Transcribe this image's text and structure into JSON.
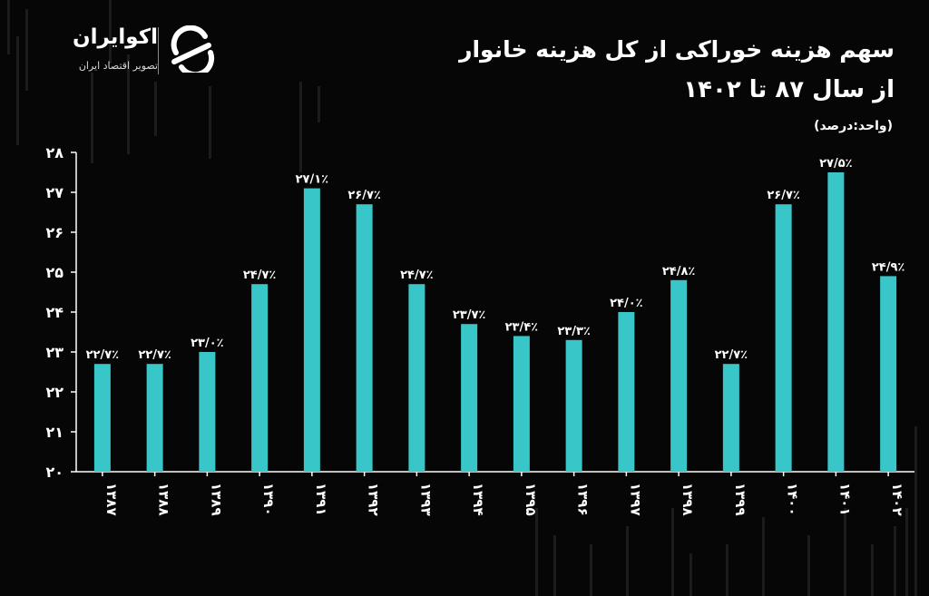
{
  "brand": {
    "name": "اکوایران",
    "tagline": "تصویر اقتصاد ایران"
  },
  "title_line1": "سهم هزینه خوراکی از کل هزینه خانوار",
  "title_line2": "از سال ۸۷ تا ۱۴۰۲",
  "unit": "(واحد:درصد)",
  "colors": {
    "background": "#060606",
    "bar": "#38c6c8",
    "text": "#ffffff",
    "axis": "#ffffff"
  },
  "chart_data": {
    "type": "bar",
    "categories": [
      "۱۳۸۷",
      "۱۳۸۸",
      "۱۳۸۹",
      "۱۳۹۰",
      "۱۳۹۱",
      "۱۳۹۲",
      "۱۳۹۳",
      "۱۳۹۴",
      "۱۳۹۵",
      "۱۳۹۶",
      "۱۳۹۷",
      "۱۳۹۸",
      "۱۳۹۹",
      "۱۴۰۰",
      "۱۴۰۱",
      "۱۴۰۲"
    ],
    "values": [
      22.7,
      22.7,
      23.0,
      24.7,
      27.1,
      26.7,
      24.7,
      23.7,
      23.4,
      23.3,
      24.0,
      24.8,
      22.7,
      26.7,
      27.5,
      24.9
    ],
    "value_labels": [
      "۲۲/۷٪",
      "۲۲/۷٪",
      "۲۳/۰٪",
      "۲۴/۷٪",
      "۲۷/۱٪",
      "۲۶/۷٪",
      "۲۴/۷٪",
      "۲۳/۷٪",
      "۲۳/۴٪",
      "۲۳/۳٪",
      "۲۴/۰٪",
      "۲۴/۸٪",
      "۲۲/۷٪",
      "۲۶/۷٪",
      "۲۷/۵٪",
      "۲۴/۹٪"
    ],
    "yticks": [
      20,
      21,
      22,
      23,
      24,
      25,
      26,
      27,
      28
    ],
    "ytick_labels": [
      "۲۰",
      "۲۱",
      "۲۲",
      "۲۳",
      "۲۴",
      "۲۵",
      "۲۶",
      "۲۷",
      "۲۸"
    ],
    "ylim": [
      20,
      28
    ],
    "xlabel": "",
    "ylabel": "",
    "grid": false
  }
}
